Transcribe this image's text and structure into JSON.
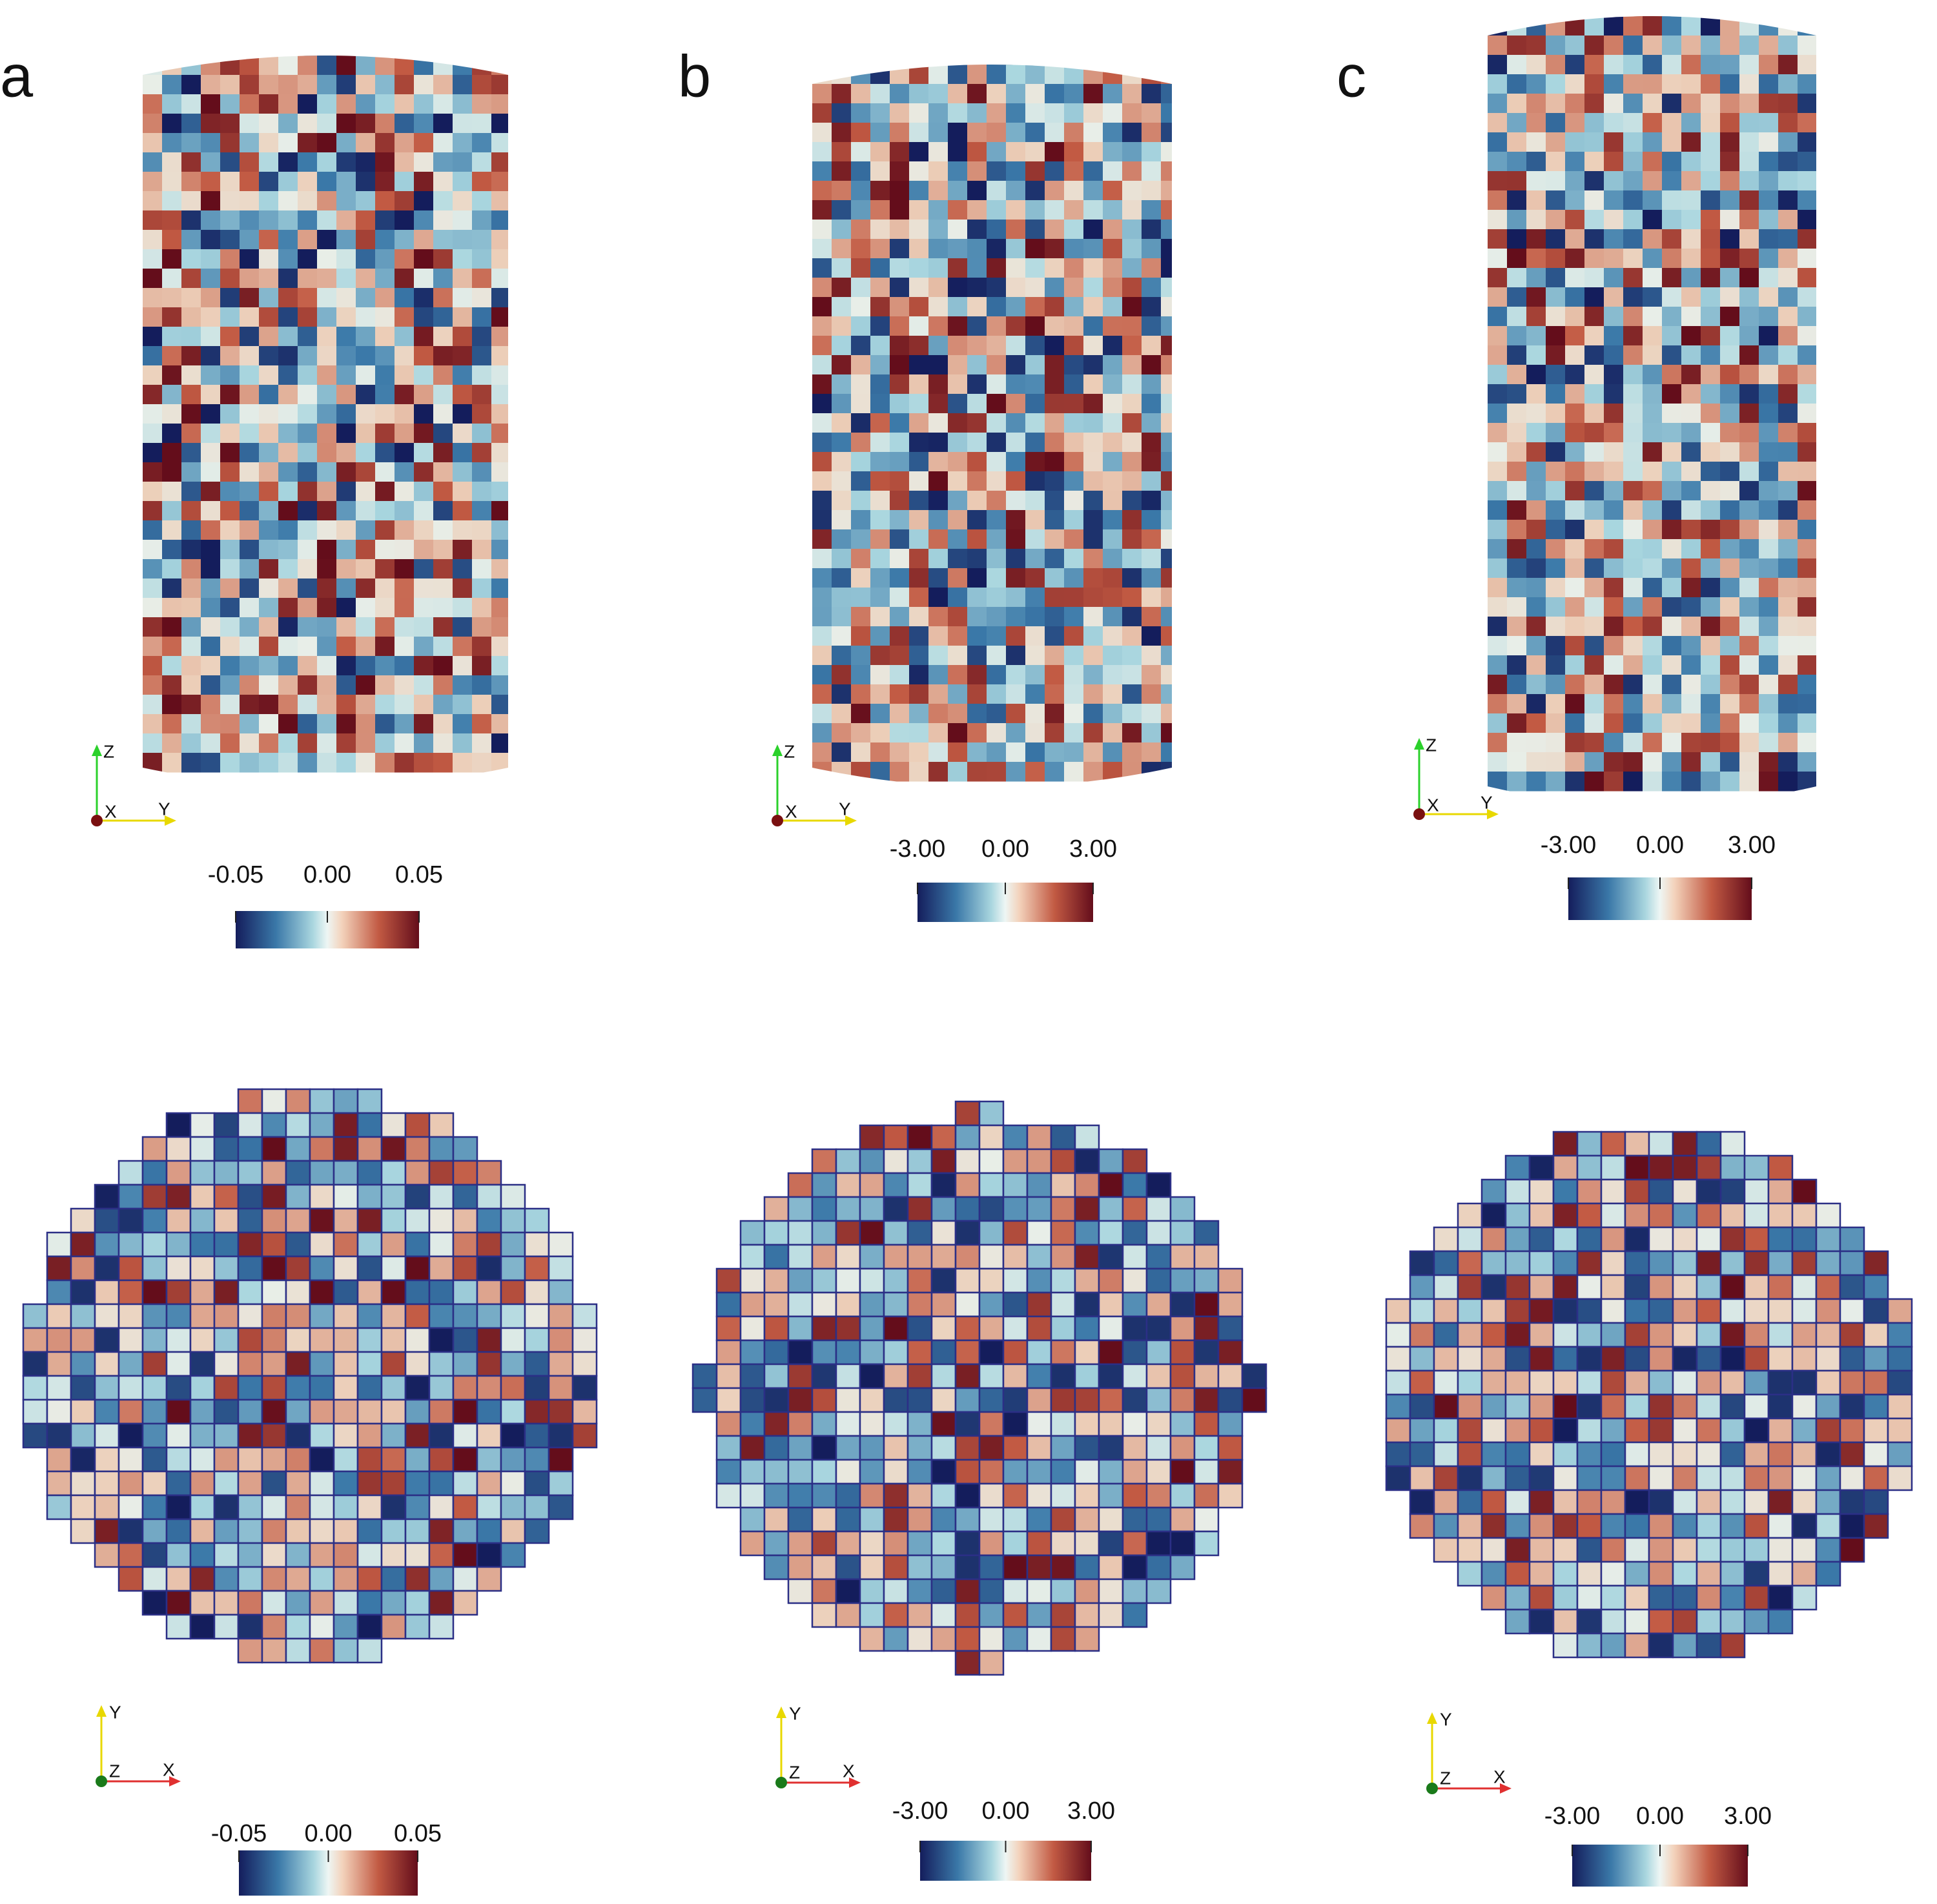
{
  "panels": [
    {
      "label": "a",
      "side_view": {
        "axes": {
          "z": "Z",
          "x": "X",
          "y": "Y"
        },
        "colorbar": {
          "ticks": [
            "-0.05",
            "0.00",
            "0.05"
          ]
        }
      },
      "top_view": {
        "axes": {
          "y": "Y",
          "z": "Z",
          "x": "X"
        },
        "colorbar": {
          "ticks": [
            "-0.05",
            "0.00",
            "0.05"
          ]
        }
      }
    },
    {
      "label": "b",
      "side_view": {
        "axes": {
          "z": "Z",
          "x": "X",
          "y": "Y"
        },
        "colorbar": {
          "ticks": [
            "-3.00",
            "0.00",
            "3.00"
          ]
        }
      },
      "top_view": {
        "axes": {
          "y": "Y",
          "z": "Z",
          "x": "X"
        },
        "colorbar": {
          "ticks": [
            "-3.00",
            "0.00",
            "3.00"
          ]
        }
      }
    },
    {
      "label": "c",
      "side_view": {
        "axes": {
          "z": "Z",
          "x": "X",
          "y": "Y"
        },
        "colorbar": {
          "ticks": [
            "-3.00",
            "0.00",
            "3.00"
          ]
        }
      },
      "top_view": {
        "axes": {
          "y": "Y",
          "z": "Z",
          "x": "X"
        },
        "colorbar": {
          "ticks": [
            "-3.00",
            "0.00",
            "3.00"
          ]
        }
      }
    }
  ]
}
